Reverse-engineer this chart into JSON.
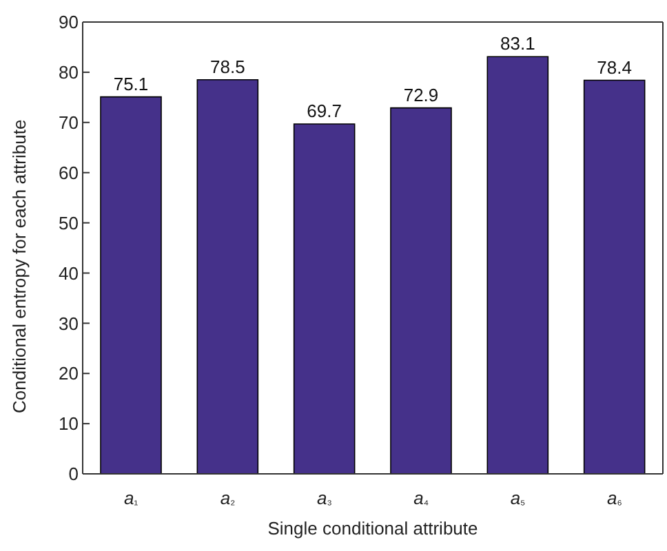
{
  "chart_data": {
    "type": "bar",
    "xlabel": "Single conditional attribute",
    "ylabel": "Conditional entropy for each attribute",
    "categories": [
      "a₁",
      "a₂",
      "a₃",
      "a₄",
      "a₅",
      "a₆"
    ],
    "values": [
      75.1,
      78.5,
      69.7,
      72.9,
      83.1,
      78.4
    ],
    "color": "#45318a",
    "ylim": [
      0,
      90
    ],
    "yticks": [
      0,
      10,
      20,
      30,
      40,
      50,
      60,
      70,
      80,
      90
    ],
    "grid": false,
    "data_labels": true
  }
}
